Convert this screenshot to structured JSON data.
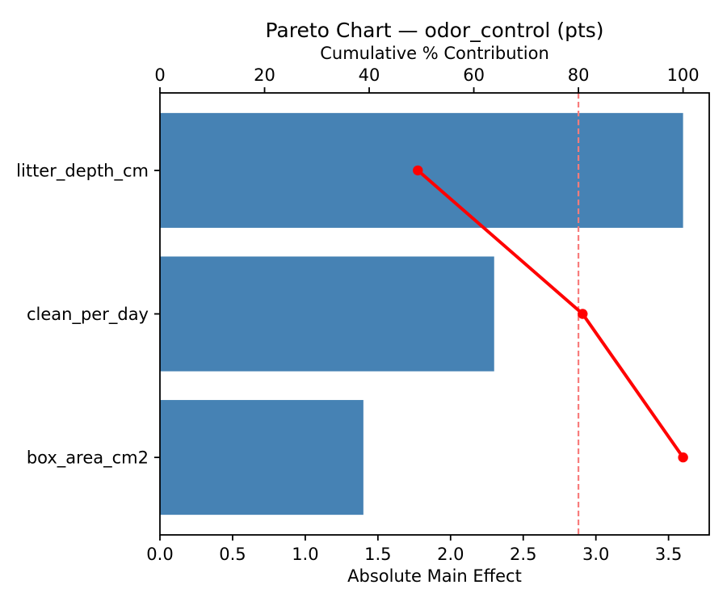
{
  "figure": {
    "title": "Pareto Chart — odor_control (pts)"
  },
  "chart_data": {
    "type": "bar",
    "orientation": "horizontal",
    "title": "Pareto Chart — odor_control (pts)",
    "categories": [
      "litter_depth_cm",
      "clean_per_day",
      "box_area_cm2"
    ],
    "series": [
      {
        "name": "Absolute Main Effect",
        "type": "bar",
        "axis": "bottom",
        "values": [
          3.6,
          2.3,
          1.4
        ]
      },
      {
        "name": "Cumulative % Contribution",
        "type": "line",
        "axis": "top",
        "values": [
          49.3,
          80.8,
          100.0
        ]
      }
    ],
    "bottom_axis": {
      "label": "Absolute Main Effect",
      "ticks": [
        0.0,
        0.5,
        1.0,
        1.5,
        2.0,
        2.5,
        3.0,
        3.5
      ],
      "tick_labels": [
        "0.0",
        "0.5",
        "1.0",
        "1.5",
        "2.0",
        "2.5",
        "3.0",
        "3.5"
      ],
      "lim": [
        0,
        3.78
      ]
    },
    "top_axis": {
      "label": "Cumulative % Contribution",
      "ticks": [
        0,
        20,
        40,
        60,
        80,
        100
      ],
      "tick_labels": [
        "0",
        "20",
        "40",
        "60",
        "80",
        "100"
      ],
      "lim": [
        0,
        105
      ]
    },
    "reference_line": {
      "axis": "top",
      "value": 80,
      "style": "dashed"
    },
    "colors": {
      "bar": "#4682b4",
      "line": "#ff0000",
      "marker": "#ff0000",
      "reference": "#f87c7c",
      "frame": "#000000",
      "text": "#000000",
      "background": "#ffffff"
    },
    "grid": "off",
    "legend": "off"
  }
}
